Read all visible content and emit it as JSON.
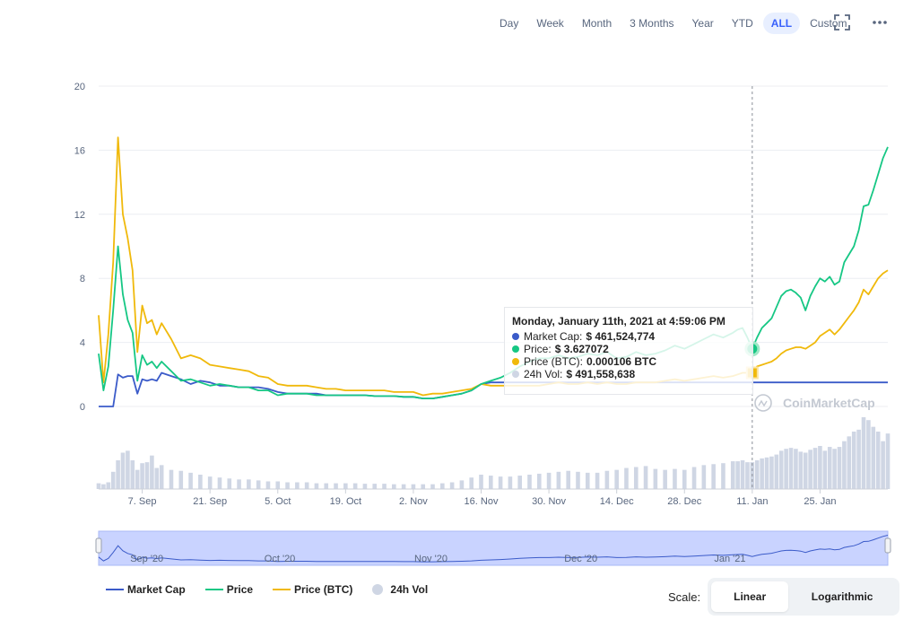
{
  "toolbar": {
    "ranges": [
      "Day",
      "Week",
      "Month",
      "3 Months",
      "Year",
      "YTD",
      "ALL",
      "Custom"
    ],
    "active": "ALL",
    "icons": [
      "fullscreen-icon",
      "more-options-icon"
    ]
  },
  "colors": {
    "market_cap": "#3b5bc9",
    "price": "#16c784",
    "price_btc": "#f0b90b",
    "volume": "#cfd6e4",
    "navigator_fill": "#c9d3ff",
    "accent": "#3861fb"
  },
  "tooltip": {
    "title": "Monday, January 11th, 2021 at 4:59:06 PM",
    "rows": [
      {
        "label": "Market Cap:",
        "value": "$ 461,524,774"
      },
      {
        "label": "Price:",
        "value": "$ 3.627072"
      },
      {
        "label": "Price (BTC):",
        "value": "0.000106 BTC"
      },
      {
        "label": "24h Vol:",
        "value": "$ 491,558,638"
      }
    ]
  },
  "watermark": "CoinMarketCap",
  "legend": {
    "market_cap": "Market Cap",
    "price": "Price",
    "price_btc": "Price (BTC)",
    "volume": "24h Vol"
  },
  "scale": {
    "label": "Scale:",
    "options": [
      "Linear",
      "Logarithmic"
    ],
    "active": "Linear"
  },
  "chart_data": {
    "type": "line",
    "y_ticks": [
      "20",
      "16",
      "12",
      "8",
      "4",
      "0"
    ],
    "ylim": [
      0,
      20
    ],
    "x_ticks": [
      "7. Sep",
      "21. Sep",
      "5. Oct",
      "19. Oct",
      "2. Nov",
      "16. Nov",
      "30. Nov",
      "14. Dec",
      "28. Dec",
      "11. Jan",
      "25. Jan"
    ],
    "x_tick_days": [
      7,
      21,
      35,
      49,
      63,
      77,
      91,
      105,
      119,
      133,
      147
    ],
    "x_range_days": [
      -2,
      161
    ],
    "crosshair_day": 133,
    "x": [
      -2,
      -1,
      0,
      1,
      2,
      3,
      4,
      5,
      6,
      7,
      8,
      9,
      10,
      11,
      13,
      15,
      17,
      19,
      21,
      23,
      25,
      27,
      29,
      31,
      33,
      35,
      37,
      39,
      41,
      43,
      45,
      47,
      49,
      51,
      53,
      55,
      57,
      59,
      61,
      63,
      65,
      67,
      69,
      71,
      73,
      75,
      77,
      79,
      81,
      83,
      85,
      87,
      89,
      91,
      93,
      95,
      97,
      99,
      101,
      103,
      105,
      107,
      109,
      111,
      113,
      115,
      117,
      119,
      121,
      123,
      125,
      127,
      129,
      130,
      131,
      132,
      133,
      134,
      135,
      136,
      137,
      138,
      139,
      140,
      141,
      142,
      143,
      144,
      145,
      146,
      147,
      148,
      149,
      150,
      151,
      152,
      153,
      154,
      155,
      156,
      157,
      158,
      159,
      160,
      161
    ],
    "series": [
      {
        "name": "Market Cap",
        "values": [
          0,
          0,
          0,
          0,
          2.0,
          1.8,
          1.9,
          1.9,
          0.8,
          1.7,
          1.6,
          1.7,
          1.6,
          2.1,
          1.9,
          1.7,
          1.4,
          1.6,
          1.5,
          1.3,
          1.3,
          1.2,
          1.2,
          1.2,
          1.1,
          0.9,
          0.8,
          0.8,
          0.8,
          0.8,
          0.7,
          0.7,
          0.7,
          0.7,
          0.7,
          0.65,
          0.65,
          0.65,
          0.6,
          0.6,
          0.5,
          0.5,
          0.6,
          0.7,
          0.8,
          1.0,
          1.4,
          1.5,
          1.5,
          1.5,
          1.5,
          1.5,
          1.5,
          1.5,
          1.5,
          1.5,
          1.5,
          1.5,
          1.5,
          1.5,
          1.5,
          1.5,
          1.5,
          1.5,
          1.5,
          1.5,
          1.5,
          1.5,
          1.5,
          1.5,
          1.5,
          1.5,
          1.5,
          1.5,
          1.5,
          1.5,
          1.5,
          1.5,
          1.5,
          1.5,
          1.5,
          1.5,
          1.5,
          1.5,
          1.5,
          1.5,
          1.5,
          1.5,
          1.5,
          1.5,
          1.5,
          1.5,
          1.5,
          1.5,
          1.5,
          1.5,
          1.5,
          1.5,
          1.5,
          1.5,
          1.5,
          1.5,
          1.5,
          1.5,
          1.5
        ]
      },
      {
        "name": "Price",
        "values": [
          3.3,
          1.0,
          2.5,
          6.0,
          10.0,
          7.0,
          5.4,
          4.6,
          1.6,
          3.2,
          2.6,
          2.8,
          2.4,
          2.8,
          2.2,
          1.6,
          1.7,
          1.5,
          1.3,
          1.4,
          1.3,
          1.2,
          1.2,
          1.0,
          1.0,
          0.7,
          0.8,
          0.8,
          0.8,
          0.7,
          0.7,
          0.7,
          0.7,
          0.7,
          0.7,
          0.65,
          0.65,
          0.65,
          0.6,
          0.6,
          0.5,
          0.5,
          0.6,
          0.7,
          0.8,
          1.0,
          1.4,
          1.6,
          1.8,
          2.1,
          2.5,
          2.8,
          3.0,
          3.0,
          3.2,
          3.0,
          3.1,
          3.3,
          3.2,
          3.4,
          3.0,
          3.1,
          3.4,
          3.2,
          3.3,
          3.5,
          3.8,
          3.6,
          3.9,
          4.2,
          4.5,
          4.3,
          4.6,
          4.8,
          4.9,
          4.3,
          3.6,
          4.3,
          4.9,
          5.2,
          5.5,
          6.2,
          6.9,
          7.2,
          7.3,
          7.1,
          6.8,
          6.0,
          6.9,
          7.5,
          8.0,
          7.8,
          8.1,
          7.6,
          7.8,
          9.0,
          9.5,
          10.0,
          11.0,
          12.5,
          12.6,
          13.5,
          14.5,
          15.5,
          16.2
        ]
      },
      {
        "name": "Price (BTC)",
        "values": [
          5.7,
          1.5,
          4.5,
          9.0,
          16.8,
          12.0,
          10.5,
          8.5,
          3.4,
          6.3,
          5.2,
          5.4,
          4.5,
          5.2,
          4.2,
          3.0,
          3.2,
          3.0,
          2.6,
          2.5,
          2.4,
          2.3,
          2.2,
          1.9,
          1.8,
          1.4,
          1.3,
          1.3,
          1.3,
          1.2,
          1.1,
          1.1,
          1.0,
          1.0,
          1.0,
          1.0,
          1.0,
          0.9,
          0.9,
          0.9,
          0.7,
          0.8,
          0.8,
          0.9,
          1.0,
          1.1,
          1.4,
          1.3,
          1.3,
          1.3,
          1.3,
          1.3,
          1.3,
          1.4,
          1.5,
          1.4,
          1.4,
          1.5,
          1.4,
          1.5,
          1.4,
          1.4,
          1.5,
          1.5,
          1.5,
          1.6,
          1.7,
          1.6,
          1.7,
          1.8,
          1.9,
          1.8,
          1.9,
          2.0,
          2.1,
          2.1,
          2.1,
          2.5,
          2.6,
          2.7,
          2.8,
          3.0,
          3.3,
          3.5,
          3.6,
          3.7,
          3.7,
          3.6,
          3.8,
          4.0,
          4.4,
          4.6,
          4.8,
          4.5,
          4.8,
          5.2,
          5.6,
          6.0,
          6.5,
          7.3,
          7.0,
          7.5,
          8.0,
          8.3,
          8.5
        ]
      }
    ],
    "volume": [
      0.6,
      0.5,
      0.7,
      1.8,
      3.0,
      3.8,
      4.0,
      3.0,
      2.0,
      2.7,
      2.8,
      3.5,
      2.2,
      2.5,
      2.0,
      1.9,
      1.7,
      1.5,
      1.3,
      1.2,
      1.1,
      1.0,
      1.0,
      0.9,
      0.8,
      0.8,
      0.7,
      0.7,
      0.7,
      0.6,
      0.6,
      0.6,
      0.6,
      0.6,
      0.55,
      0.55,
      0.55,
      0.5,
      0.5,
      0.5,
      0.5,
      0.5,
      0.6,
      0.7,
      0.9,
      1.2,
      1.5,
      1.4,
      1.3,
      1.3,
      1.4,
      1.5,
      1.6,
      1.7,
      1.8,
      1.9,
      1.8,
      1.7,
      1.7,
      1.9,
      2.0,
      2.2,
      2.3,
      2.4,
      2.1,
      2.0,
      2.1,
      2.0,
      2.3,
      2.5,
      2.6,
      2.7,
      2.9,
      2.9,
      3.0,
      2.8,
      2.8,
      3.0,
      3.2,
      3.3,
      3.4,
      3.6,
      4.0,
      4.2,
      4.3,
      4.2,
      3.9,
      3.8,
      4.1,
      4.3,
      4.5,
      4.0,
      4.4,
      4.2,
      4.4,
      5.0,
      5.5,
      6.0,
      6.2,
      7.5,
      7.2,
      6.5,
      6.0,
      5.0,
      5.8
    ]
  },
  "navigator": {
    "labels": [
      "Sep '20",
      "Oct '20",
      "Nov '20",
      "Dec '20",
      "Jan '21"
    ]
  }
}
